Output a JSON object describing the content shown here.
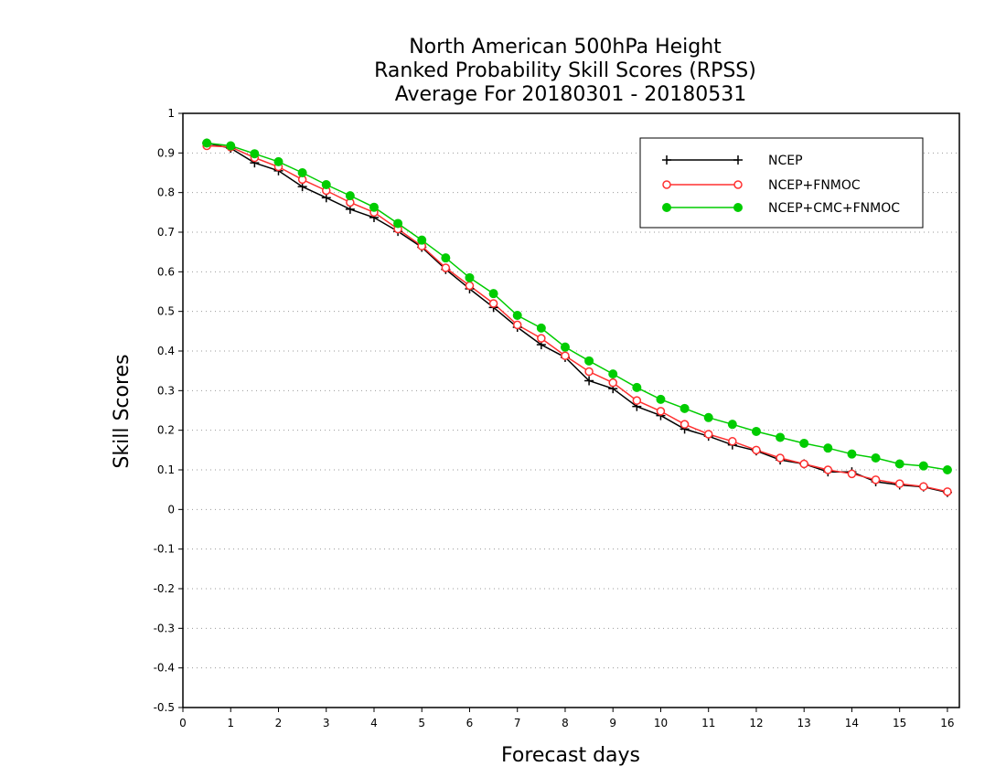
{
  "chart_data": {
    "type": "line",
    "title_lines": [
      "North American 500hPa Height",
      "Ranked Probability Skill Scores (RPSS)",
      "Average For 20180301 - 20180531"
    ],
    "xlabel": "Forecast days",
    "ylabel": "Skill Scores",
    "xlim": [
      0,
      16.25
    ],
    "ylim": [
      -0.5,
      1
    ],
    "x_ticks": [
      0,
      1,
      2,
      3,
      4,
      5,
      6,
      7,
      8,
      9,
      10,
      11,
      12,
      13,
      14,
      15,
      16
    ],
    "y_ticks": [
      -0.5,
      -0.4,
      -0.3,
      -0.2,
      -0.1,
      0,
      0.1,
      0.2,
      0.3,
      0.4,
      0.5,
      0.6,
      0.7,
      0.8,
      0.9,
      1
    ],
    "y_tick_labels": [
      "-0.5",
      "-0.4",
      "-0.3",
      "-0.2",
      "-0.1",
      "0",
      "0.1",
      "0.2",
      "0.3",
      "0.4",
      "0.5",
      "0.6",
      "0.7",
      "0.8",
      "0.9",
      "1"
    ],
    "grid": "horizontal dotted",
    "legend_position": "top-right",
    "x": [
      0.5,
      1,
      1.5,
      2,
      2.5,
      3,
      3.5,
      4,
      4.5,
      5,
      5.5,
      6,
      6.5,
      7,
      7.5,
      8,
      8.5,
      9,
      9.5,
      10,
      10.5,
      11,
      11.5,
      12,
      12.5,
      13,
      13.5,
      14,
      14.5,
      15,
      15.5,
      16
    ],
    "series": [
      {
        "name": "NCEP",
        "color": "#000000",
        "marker": "plus",
        "values": [
          0.925,
          0.912,
          0.875,
          0.855,
          0.815,
          0.787,
          0.758,
          0.737,
          0.702,
          0.662,
          0.606,
          0.557,
          0.51,
          0.46,
          0.416,
          0.384,
          0.325,
          0.305,
          0.26,
          0.237,
          0.203,
          0.185,
          0.163,
          0.148,
          0.125,
          0.115,
          0.095,
          0.095,
          0.07,
          0.062,
          0.057,
          0.043
        ]
      },
      {
        "name": "NCEP+FNMOC",
        "color": "#ff3030",
        "marker": "open-circle",
        "values": [
          0.918,
          0.915,
          0.888,
          0.865,
          0.833,
          0.805,
          0.775,
          0.75,
          0.708,
          0.665,
          0.61,
          0.565,
          0.52,
          0.466,
          0.432,
          0.388,
          0.348,
          0.32,
          0.275,
          0.248,
          0.215,
          0.19,
          0.172,
          0.15,
          0.13,
          0.115,
          0.1,
          0.09,
          0.075,
          0.065,
          0.058,
          0.045
        ]
      },
      {
        "name": "NCEP+CMC+FNMOC",
        "color": "#00cc00",
        "marker": "filled-circle",
        "values": [
          0.925,
          0.918,
          0.898,
          0.878,
          0.85,
          0.82,
          0.792,
          0.763,
          0.722,
          0.68,
          0.635,
          0.585,
          0.545,
          0.49,
          0.458,
          0.41,
          0.375,
          0.342,
          0.308,
          0.278,
          0.255,
          0.232,
          0.215,
          0.197,
          0.182,
          0.167,
          0.155,
          0.14,
          0.13,
          0.115,
          0.11,
          0.1
        ]
      }
    ]
  }
}
